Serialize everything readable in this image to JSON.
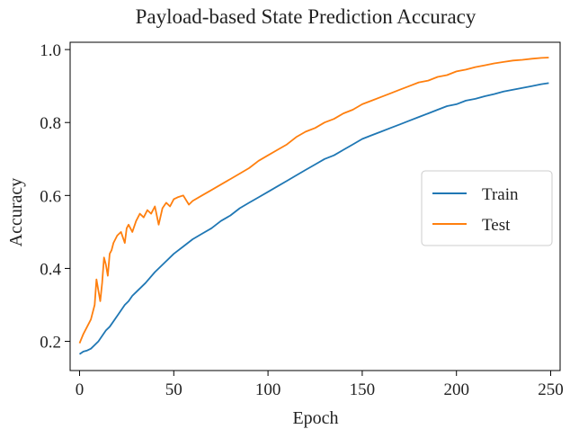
{
  "chart_data": {
    "type": "line",
    "title": "Payload-based State Prediction Accuracy",
    "xlabel": "Epoch",
    "ylabel": "Accuracy",
    "xlim": [
      -5,
      255
    ],
    "ylim": [
      0.12,
      1.02
    ],
    "xticks": [
      0,
      50,
      100,
      150,
      200,
      250
    ],
    "yticks": [
      0.2,
      0.4,
      0.6,
      0.8,
      1.0
    ],
    "xtick_labels": [
      "0",
      "50",
      "100",
      "150",
      "200",
      "250"
    ],
    "ytick_labels": [
      "0.2",
      "0.4",
      "0.6",
      "0.8",
      "1.0"
    ],
    "grid": false,
    "legend_position": "center-right",
    "series": [
      {
        "name": "Train",
        "color": "#1f77b4",
        "x": [
          0,
          2,
          4,
          6,
          8,
          10,
          12,
          14,
          16,
          18,
          20,
          22,
          24,
          26,
          28,
          30,
          35,
          40,
          45,
          50,
          55,
          60,
          65,
          70,
          75,
          80,
          85,
          90,
          95,
          100,
          105,
          110,
          115,
          120,
          125,
          130,
          135,
          140,
          145,
          150,
          155,
          160,
          165,
          170,
          175,
          180,
          185,
          190,
          195,
          200,
          205,
          210,
          215,
          220,
          225,
          230,
          235,
          240,
          245,
          249
        ],
        "y": [
          0.165,
          0.172,
          0.175,
          0.18,
          0.19,
          0.2,
          0.215,
          0.23,
          0.24,
          0.255,
          0.27,
          0.285,
          0.3,
          0.31,
          0.325,
          0.335,
          0.36,
          0.39,
          0.415,
          0.44,
          0.46,
          0.48,
          0.495,
          0.51,
          0.53,
          0.545,
          0.565,
          0.58,
          0.595,
          0.61,
          0.625,
          0.64,
          0.655,
          0.67,
          0.685,
          0.7,
          0.71,
          0.725,
          0.74,
          0.755,
          0.765,
          0.775,
          0.785,
          0.795,
          0.805,
          0.815,
          0.825,
          0.835,
          0.845,
          0.85,
          0.86,
          0.865,
          0.872,
          0.878,
          0.885,
          0.89,
          0.895,
          0.9,
          0.905,
          0.908
        ]
      },
      {
        "name": "Test",
        "color": "#ff7f0e",
        "x": [
          0,
          2,
          4,
          6,
          8,
          9,
          10,
          11,
          12,
          13,
          14,
          15,
          16,
          17,
          18,
          20,
          22,
          24,
          25,
          26,
          28,
          30,
          32,
          34,
          36,
          38,
          40,
          42,
          44,
          46,
          48,
          50,
          52,
          55,
          58,
          60,
          65,
          70,
          75,
          80,
          85,
          90,
          95,
          100,
          105,
          110,
          115,
          120,
          125,
          130,
          135,
          140,
          145,
          150,
          155,
          160,
          165,
          170,
          175,
          180,
          185,
          190,
          195,
          200,
          205,
          210,
          215,
          220,
          225,
          230,
          235,
          240,
          245,
          249
        ],
        "y": [
          0.195,
          0.22,
          0.24,
          0.26,
          0.3,
          0.37,
          0.34,
          0.31,
          0.36,
          0.43,
          0.41,
          0.38,
          0.44,
          0.45,
          0.47,
          0.49,
          0.5,
          0.47,
          0.51,
          0.52,
          0.5,
          0.53,
          0.55,
          0.54,
          0.56,
          0.55,
          0.57,
          0.52,
          0.565,
          0.58,
          0.57,
          0.59,
          0.595,
          0.6,
          0.575,
          0.585,
          0.6,
          0.615,
          0.63,
          0.645,
          0.66,
          0.675,
          0.695,
          0.71,
          0.725,
          0.74,
          0.76,
          0.775,
          0.785,
          0.8,
          0.81,
          0.825,
          0.835,
          0.85,
          0.86,
          0.87,
          0.88,
          0.89,
          0.9,
          0.91,
          0.915,
          0.925,
          0.93,
          0.94,
          0.945,
          0.952,
          0.957,
          0.962,
          0.966,
          0.97,
          0.972,
          0.975,
          0.977,
          0.978
        ]
      }
    ]
  }
}
